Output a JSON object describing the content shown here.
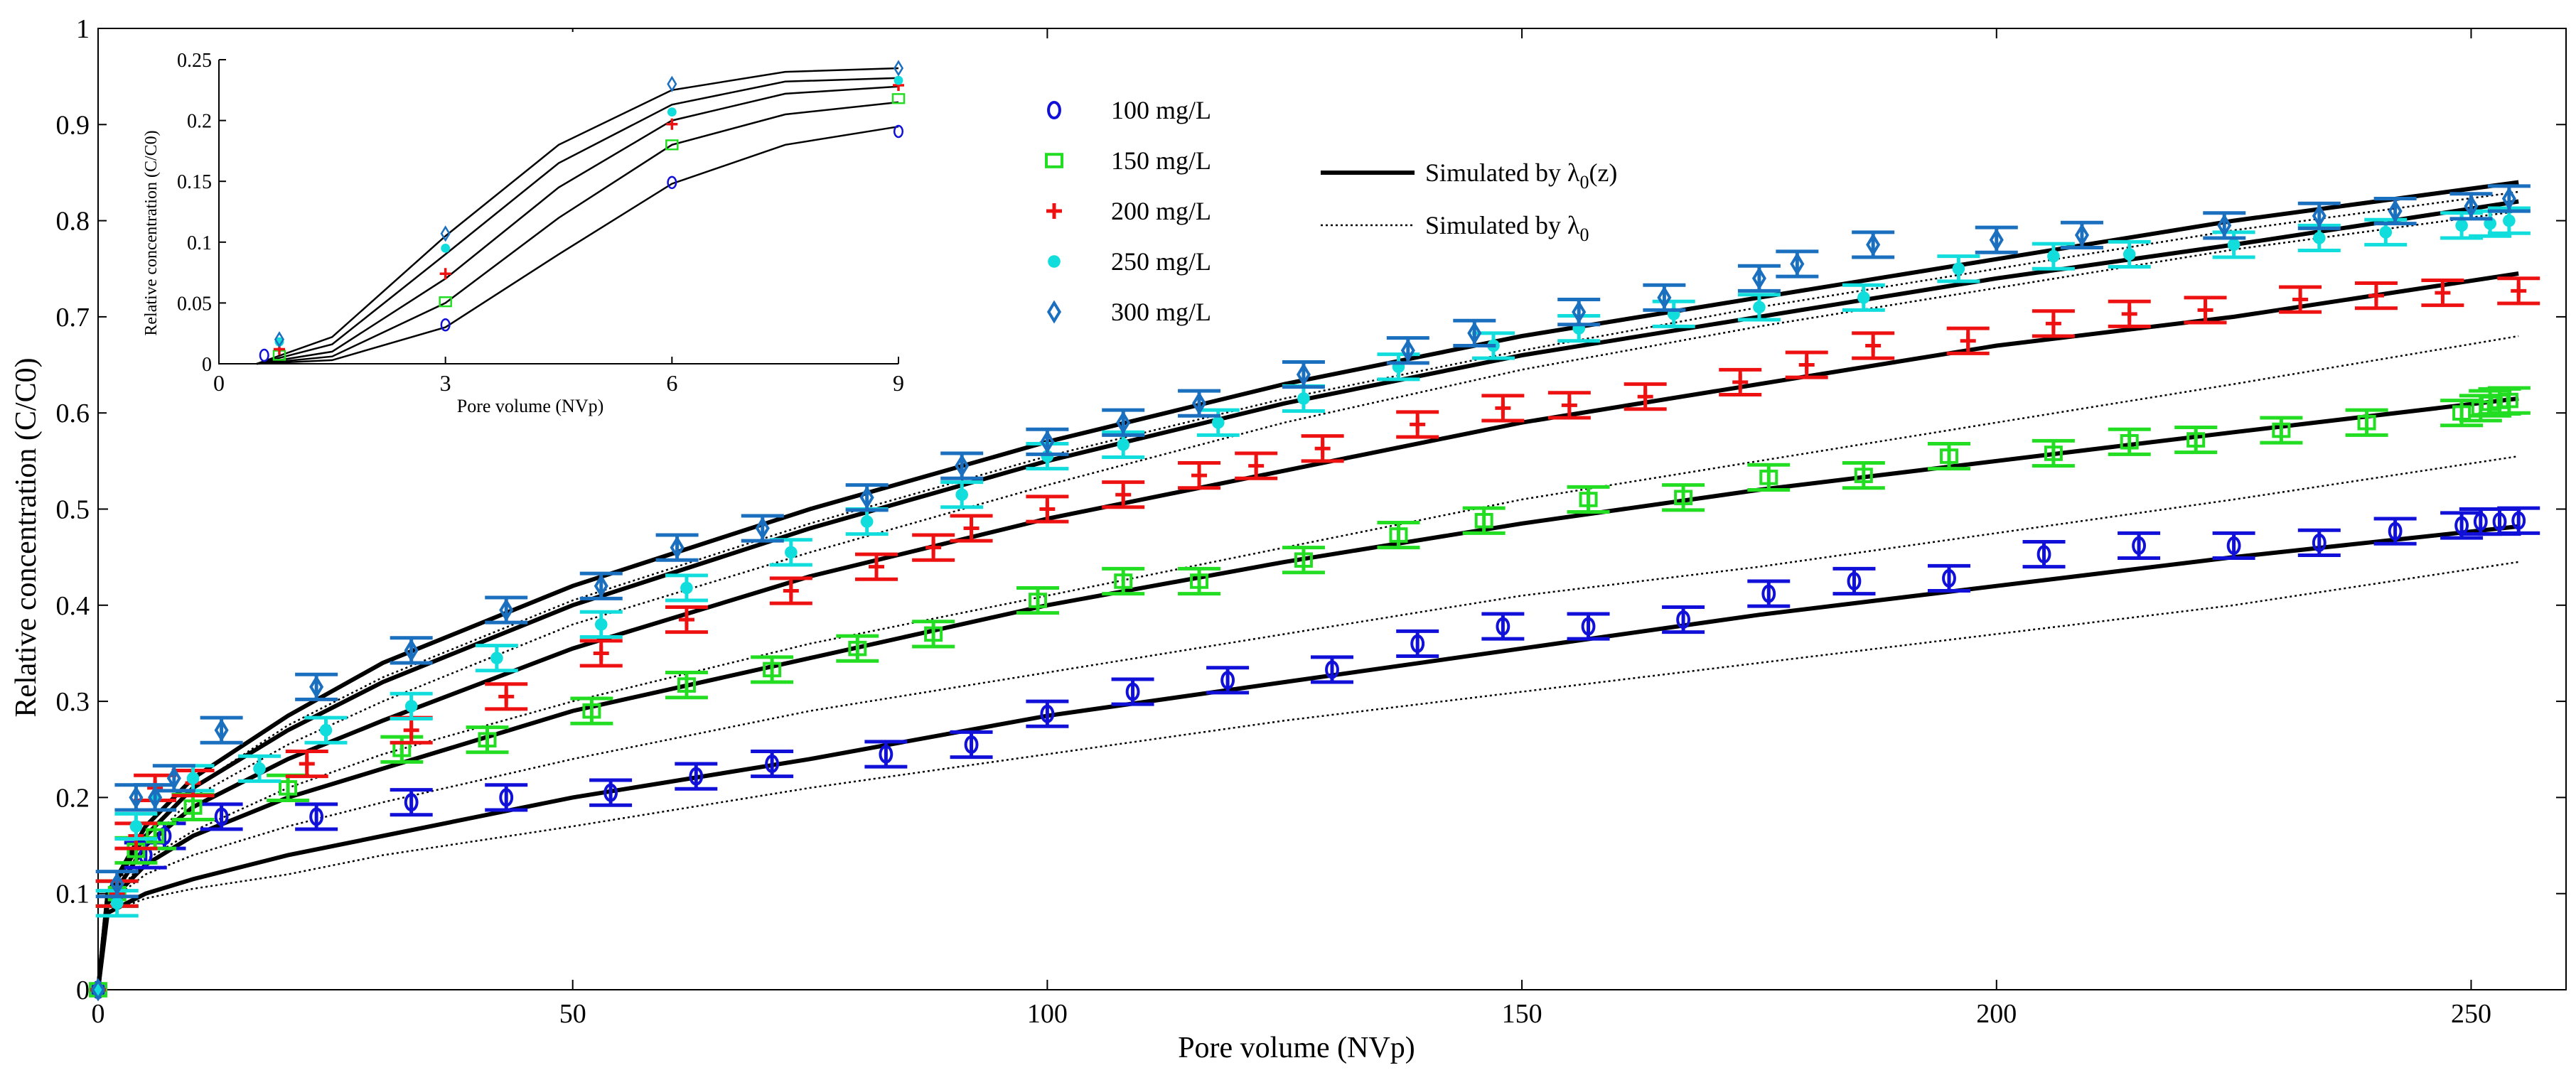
{
  "chart_data": [
    {
      "id": "main",
      "type": "scatter",
      "title": "",
      "xlabel": "Pore volume (NVp)",
      "ylabel": "Relative concentration (C/C0)",
      "xlim": [
        0,
        260
      ],
      "ylim": [
        0,
        1
      ],
      "xticks": [
        0,
        50,
        100,
        150,
        200,
        250
      ],
      "yticks": [
        0,
        0.1,
        0.2,
        0.3,
        0.4,
        0.5,
        0.6,
        0.7,
        0.8,
        0.9,
        1
      ],
      "ytick_labels": [
        "0",
        "0.1",
        "0.2",
        "0.3",
        "0.4",
        "0.5",
        "0.6",
        "0.7",
        "0.8",
        "0.9",
        "1"
      ],
      "grid": false,
      "errorbar_half_width": 0.013,
      "series": [
        {
          "name": "100 mg/L",
          "marker": "circle",
          "color": "#1010d8",
          "x": [
            0,
            2,
            5,
            7,
            13,
            23,
            33,
            43,
            54,
            63,
            71,
            83,
            92,
            100,
            109,
            119,
            130,
            139,
            148,
            157,
            167,
            176,
            185,
            195,
            205,
            215,
            225,
            234,
            242,
            249,
            251,
            253,
            255
          ],
          "y": [
            0,
            0.1,
            0.14,
            0.16,
            0.18,
            0.18,
            0.195,
            0.2,
            0.205,
            0.222,
            0.235,
            0.245,
            0.255,
            0.287,
            0.31,
            0.322,
            0.333,
            0.36,
            0.378,
            0.378,
            0.385,
            0.412,
            0.425,
            0.428,
            0.453,
            0.462,
            0.462,
            0.465,
            0.477,
            0.483,
            0.487,
            0.487,
            0.488
          ]
        },
        {
          "name": "150 mg/L",
          "marker": "square",
          "color": "#22dd22",
          "x": [
            0,
            2,
            4,
            6,
            10,
            20,
            32,
            41,
            52,
            62,
            71,
            80,
            88,
            99,
            108,
            116,
            127,
            137,
            146,
            157,
            167,
            176,
            186,
            195,
            206,
            214,
            221,
            230,
            239,
            249,
            251,
            252,
            253,
            254
          ],
          "y": [
            0,
            0.1,
            0.145,
            0.16,
            0.19,
            0.21,
            0.25,
            0.26,
            0.29,
            0.317,
            0.333,
            0.355,
            0.37,
            0.405,
            0.425,
            0.425,
            0.447,
            0.473,
            0.488,
            0.51,
            0.512,
            0.533,
            0.535,
            0.555,
            0.558,
            0.57,
            0.572,
            0.582,
            0.59,
            0.6,
            0.605,
            0.61,
            0.612,
            0.613
          ]
        },
        {
          "name": "200 mg/L",
          "marker": "plus",
          "color": "#ee1111",
          "x": [
            0,
            2,
            4,
            6,
            10,
            22,
            33,
            43,
            53,
            62,
            73,
            82,
            88,
            92,
            100,
            108,
            116,
            122,
            129,
            139,
            148,
            155,
            163,
            173,
            180,
            187,
            197,
            206,
            214,
            222,
            232,
            240,
            247,
            255
          ],
          "y": [
            0,
            0.1,
            0.16,
            0.21,
            0.215,
            0.235,
            0.27,
            0.305,
            0.35,
            0.385,
            0.415,
            0.44,
            0.46,
            0.48,
            0.5,
            0.515,
            0.535,
            0.545,
            0.563,
            0.588,
            0.605,
            0.608,
            0.617,
            0.632,
            0.65,
            0.67,
            0.675,
            0.693,
            0.703,
            0.707,
            0.718,
            0.722,
            0.725,
            0.727
          ]
        },
        {
          "name": "250 mg/L",
          "marker": "dot",
          "color": "#11dddd",
          "x": [
            0,
            2,
            4,
            6,
            10,
            17,
            24,
            33,
            42,
            53,
            62,
            73,
            81,
            91,
            100,
            108,
            118,
            127,
            137,
            147,
            156,
            166,
            175,
            186,
            196,
            206,
            214,
            225,
            234,
            241,
            249,
            252,
            254
          ],
          "y": [
            0,
            0.09,
            0.17,
            0.2,
            0.22,
            0.23,
            0.27,
            0.295,
            0.345,
            0.38,
            0.418,
            0.455,
            0.487,
            0.515,
            0.555,
            0.567,
            0.59,
            0.615,
            0.648,
            0.67,
            0.688,
            0.703,
            0.71,
            0.72,
            0.75,
            0.763,
            0.765,
            0.775,
            0.782,
            0.788,
            0.795,
            0.797,
            0.8
          ]
        },
        {
          "name": "300 mg/L",
          "marker": "diamond",
          "color": "#1a6fbf",
          "x": [
            0,
            2,
            4,
            6,
            8,
            13,
            23,
            33,
            43,
            53,
            61,
            70,
            81,
            91,
            100,
            108,
            116,
            127,
            138,
            145,
            156,
            165,
            175,
            179,
            187,
            200,
            209,
            224,
            234,
            242,
            250,
            254
          ],
          "y": [
            0,
            0.11,
            0.2,
            0.2,
            0.22,
            0.27,
            0.315,
            0.353,
            0.395,
            0.42,
            0.46,
            0.48,
            0.512,
            0.545,
            0.57,
            0.59,
            0.61,
            0.64,
            0.665,
            0.683,
            0.705,
            0.72,
            0.74,
            0.755,
            0.775,
            0.78,
            0.785,
            0.795,
            0.805,
            0.81,
            0.815,
            0.823
          ]
        }
      ],
      "curves": [
        {
          "name": "Simulated by λ0(z)",
          "style": "solid",
          "lines": [
            {
              "x": [
                0,
                1,
                5,
                10,
                20,
                30,
                50,
                75,
                100,
                125,
                150,
                175,
                200,
                225,
                255
              ],
              "y": [
                0,
                0.08,
                0.1,
                0.115,
                0.14,
                0.16,
                0.2,
                0.24,
                0.285,
                0.32,
                0.355,
                0.39,
                0.42,
                0.45,
                0.482
              ]
            },
            {
              "x": [
                0,
                1,
                5,
                10,
                20,
                30,
                50,
                75,
                100,
                125,
                150,
                175,
                200,
                225,
                255
              ],
              "y": [
                0,
                0.09,
                0.13,
                0.16,
                0.2,
                0.23,
                0.29,
                0.345,
                0.4,
                0.445,
                0.485,
                0.52,
                0.55,
                0.58,
                0.615
              ]
            },
            {
              "x": [
                0,
                1,
                5,
                10,
                20,
                30,
                50,
                75,
                100,
                125,
                150,
                175,
                200,
                225,
                255
              ],
              "y": [
                0,
                0.09,
                0.15,
                0.19,
                0.24,
                0.28,
                0.355,
                0.43,
                0.49,
                0.54,
                0.59,
                0.63,
                0.67,
                0.7,
                0.745
              ]
            },
            {
              "x": [
                0,
                1,
                5,
                10,
                20,
                30,
                50,
                75,
                100,
                125,
                150,
                175,
                200,
                225,
                255
              ],
              "y": [
                0,
                0.1,
                0.16,
                0.21,
                0.27,
                0.32,
                0.4,
                0.48,
                0.55,
                0.61,
                0.66,
                0.7,
                0.74,
                0.775,
                0.82
              ]
            },
            {
              "x": [
                0,
                1,
                5,
                10,
                20,
                30,
                50,
                75,
                100,
                125,
                150,
                175,
                200,
                225,
                255
              ],
              "y": [
                0,
                0.1,
                0.17,
                0.22,
                0.285,
                0.34,
                0.42,
                0.5,
                0.57,
                0.63,
                0.68,
                0.72,
                0.76,
                0.8,
                0.84
              ]
            }
          ]
        },
        {
          "name": "Simulated by λ0",
          "style": "dotted",
          "lines": [
            {
              "x": [
                0,
                1,
                5,
                10,
                20,
                30,
                50,
                75,
                100,
                125,
                150,
                175,
                200,
                225,
                255
              ],
              "y": [
                0,
                0.08,
                0.095,
                0.105,
                0.12,
                0.14,
                0.17,
                0.21,
                0.245,
                0.28,
                0.31,
                0.34,
                0.37,
                0.4,
                0.445
              ]
            },
            {
              "x": [
                0,
                1,
                5,
                10,
                20,
                30,
                50,
                75,
                100,
                125,
                150,
                175,
                200,
                225,
                255
              ],
              "y": [
                0,
                0.09,
                0.12,
                0.14,
                0.17,
                0.195,
                0.24,
                0.29,
                0.33,
                0.37,
                0.41,
                0.44,
                0.475,
                0.51,
                0.555
              ]
            },
            {
              "x": [
                0,
                1,
                5,
                10,
                20,
                30,
                50,
                75,
                100,
                125,
                150,
                175,
                200,
                225,
                255
              ],
              "y": [
                0,
                0.09,
                0.135,
                0.165,
                0.21,
                0.245,
                0.3,
                0.36,
                0.41,
                0.46,
                0.51,
                0.55,
                0.59,
                0.63,
                0.68
              ]
            },
            {
              "x": [
                0,
                1,
                5,
                10,
                20,
                30,
                50,
                75,
                100,
                125,
                150,
                175,
                200,
                225,
                255
              ],
              "y": [
                0,
                0.1,
                0.15,
                0.2,
                0.255,
                0.3,
                0.38,
                0.455,
                0.525,
                0.59,
                0.645,
                0.69,
                0.73,
                0.77,
                0.81
              ]
            },
            {
              "x": [
                0,
                1,
                5,
                10,
                20,
                30,
                50,
                75,
                100,
                125,
                150,
                175,
                200,
                225,
                255
              ],
              "y": [
                0,
                0.1,
                0.16,
                0.21,
                0.275,
                0.325,
                0.405,
                0.485,
                0.555,
                0.615,
                0.665,
                0.71,
                0.75,
                0.79,
                0.83
              ]
            }
          ]
        }
      ],
      "legend": {
        "placement": "top-center",
        "markers": [
          "100 mg/L",
          "150 mg/L",
          "200 mg/L",
          "250 mg/L",
          "300 mg/L"
        ],
        "lines": [
          {
            "style": "solid",
            "label_prefix": "Simulated by λ",
            "sub": "0",
            "label_suffix": "(z)"
          },
          {
            "style": "dotted",
            "label_prefix": "Simulated by λ",
            "sub": "0",
            "label_suffix": ""
          }
        ]
      }
    },
    {
      "id": "inset",
      "type": "scatter",
      "placement": "top-left",
      "xlabel": "Pore volume (NVp)",
      "ylabel": "Relative concentration (C/C0)",
      "xlim": [
        0,
        9
      ],
      "ylim": [
        0,
        0.25
      ],
      "xticks": [
        0,
        3,
        6,
        9
      ],
      "yticks": [
        0,
        0.05,
        0.1,
        0.15,
        0.2,
        0.25
      ],
      "ytick_labels": [
        "0",
        "0.05",
        "0.1",
        "0.15",
        "0.2",
        "0.25"
      ],
      "series": [
        {
          "name": "100 mg/L",
          "marker": "circle",
          "color": "#1010d8",
          "x": [
            0.6,
            3,
            6,
            9
          ],
          "y": [
            0.007,
            0.032,
            0.149,
            0.191
          ]
        },
        {
          "name": "150 mg/L",
          "marker": "square",
          "color": "#22dd22",
          "x": [
            0.8,
            3,
            6,
            9
          ],
          "y": [
            0.007,
            0.051,
            0.18,
            0.218
          ]
        },
        {
          "name": "200 mg/L",
          "marker": "plus",
          "color": "#ee1111",
          "x": [
            0.8,
            3,
            6,
            9
          ],
          "y": [
            0.012,
            0.074,
            0.197,
            0.229
          ]
        },
        {
          "name": "250 mg/L",
          "marker": "dot",
          "color": "#11dddd",
          "x": [
            0.8,
            3,
            6,
            9
          ],
          "y": [
            0.018,
            0.095,
            0.207,
            0.233
          ]
        },
        {
          "name": "300 mg/L",
          "marker": "diamond",
          "color": "#1a6fbf",
          "x": [
            0.8,
            3,
            6,
            9
          ],
          "y": [
            0.02,
            0.107,
            0.23,
            0.243
          ]
        }
      ],
      "curves": [
        {
          "x": [
            0.5,
            1.5,
            3,
            4.5,
            6,
            7.5,
            9
          ],
          "y": [
            0,
            0.003,
            0.03,
            0.09,
            0.148,
            0.18,
            0.195
          ]
        },
        {
          "x": [
            0.5,
            1.5,
            3,
            4.5,
            6,
            7.5,
            9
          ],
          "y": [
            0,
            0.006,
            0.05,
            0.12,
            0.18,
            0.205,
            0.215
          ]
        },
        {
          "x": [
            0.5,
            1.5,
            3,
            4.5,
            6,
            7.5,
            9
          ],
          "y": [
            0,
            0.01,
            0.07,
            0.145,
            0.2,
            0.222,
            0.228
          ]
        },
        {
          "x": [
            0.5,
            1.5,
            3,
            4.5,
            6,
            7.5,
            9
          ],
          "y": [
            0,
            0.016,
            0.09,
            0.165,
            0.213,
            0.232,
            0.235
          ]
        },
        {
          "x": [
            0.5,
            1.5,
            3,
            4.5,
            6,
            7.5,
            9
          ],
          "y": [
            0,
            0.022,
            0.105,
            0.18,
            0.225,
            0.24,
            0.243
          ]
        }
      ]
    }
  ]
}
